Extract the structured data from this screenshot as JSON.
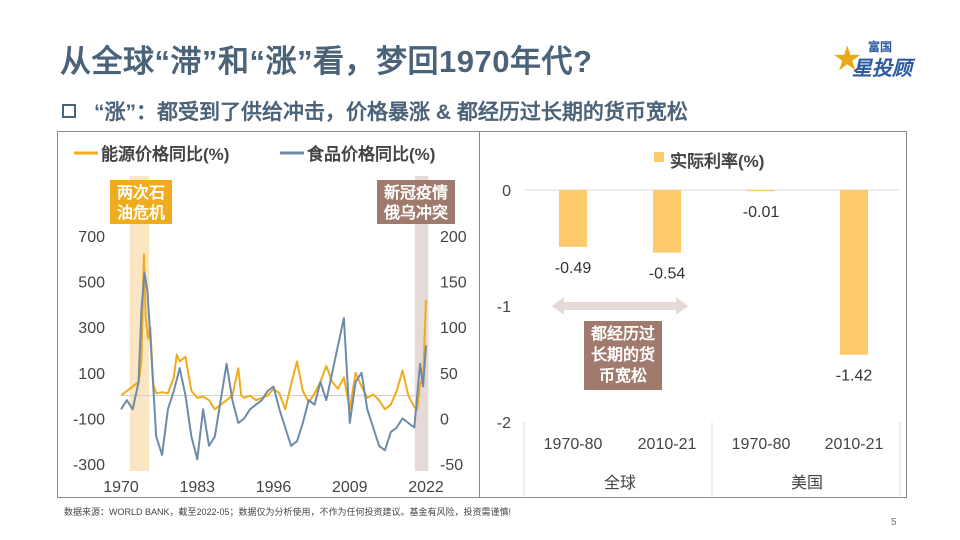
{
  "header": {
    "title": "从全球“滞”和“涨”看，梦回1970年代?",
    "subtitle": "“涨”：都受到了供给冲击，价格暴涨 & 都经历过长期的货币宽松",
    "logo_text_top": "富国",
    "logo_text_main": "星投顾"
  },
  "colors": {
    "energy": "#f0ac1c",
    "food": "#6e8bab",
    "bar": "#fdca6c",
    "title": "#4b6379",
    "shade_oil": "#fbe6c3",
    "shade_covid": "#e6dad6",
    "annot_oil": "#f0ac1c",
    "annot_covid": "#a07a6c",
    "annot_easing": "#a07a6c"
  },
  "chart_data": [
    {
      "type": "line",
      "legend": [
        "能源价格同比(%)",
        "食品价格同比(%)"
      ],
      "legend_position": "top",
      "xlabel": "",
      "x_ticks": [
        "1970",
        "1983",
        "1996",
        "2009",
        "2022"
      ],
      "xlim": [
        1970,
        2022
      ],
      "y_left_ticks": [
        "700",
        "500",
        "300",
        "100",
        "-100",
        "-300"
      ],
      "y_left_lim": [
        -300,
        700
      ],
      "y_right_ticks": [
        "200",
        "150",
        "100",
        "50",
        "0",
        "-50"
      ],
      "y_right_lim": [
        -50,
        200
      ],
      "annotations": [
        {
          "text": "两次石油危机",
          "lines": [
            "两次石",
            "油危机"
          ],
          "span": [
            1971.5,
            1974.8
          ]
        },
        {
          "text": "新冠疫情俄乌冲突",
          "lines": [
            "新冠疫情",
            "俄乌冲突"
          ],
          "span": [
            2020.1,
            2022.4
          ]
        }
      ],
      "series": [
        {
          "name": "能源价格同比(%)",
          "axis": "left",
          "x": [
            1970,
            1971,
            1972,
            1973,
            1973.5,
            1973.9,
            1974.2,
            1974.6,
            1975,
            1975.5,
            1976,
            1977,
            1978,
            1979,
            1979.5,
            1980,
            1981,
            1982,
            1983,
            1984,
            1985,
            1986,
            1987,
            1988,
            1989,
            1990,
            1990.5,
            1991,
            1992,
            1993,
            1994,
            1995,
            1996,
            1997,
            1998,
            1999,
            2000,
            2001,
            2002,
            2003,
            2004,
            2005,
            2006,
            2007,
            2008,
            2009,
            2010,
            2011,
            2012,
            2013,
            2014,
            2015,
            2016,
            2017,
            2018,
            2019,
            2020,
            2020.5,
            2021,
            2021.5,
            2022
          ],
          "y": [
            0,
            20,
            40,
            60,
            150,
            620,
            350,
            250,
            300,
            50,
            10,
            15,
            10,
            80,
            180,
            150,
            170,
            20,
            -10,
            -5,
            -20,
            -60,
            -40,
            -20,
            0,
            120,
            0,
            -10,
            0,
            -20,
            -10,
            0,
            30,
            10,
            -60,
            50,
            150,
            20,
            -30,
            10,
            60,
            130,
            60,
            30,
            80,
            -60,
            100,
            40,
            -10,
            5,
            -20,
            -60,
            -40,
            20,
            110,
            0,
            -50,
            -60,
            50,
            80,
            420
          ]
        },
        {
          "name": "食品价格同比(%)",
          "axis": "right",
          "x": [
            1970,
            1971,
            1972,
            1973,
            1973.5,
            1974,
            1974.5,
            1975,
            1976,
            1977,
            1978,
            1979,
            1980,
            1981,
            1982,
            1983,
            1984,
            1985,
            1986,
            1987,
            1988,
            1989,
            1990,
            1991,
            1992,
            1993,
            1994,
            1995,
            1996,
            1997,
            1998,
            1999,
            2000,
            2001,
            2002,
            2003,
            2004,
            2005,
            2006,
            2007,
            2008,
            2009,
            2010,
            2011,
            2012,
            2013,
            2014,
            2015,
            2016,
            2017,
            2018,
            2019,
            2020,
            2021,
            2021.5,
            2022
          ],
          "y": [
            10,
            20,
            10,
            40,
            120,
            160,
            140,
            90,
            -20,
            -40,
            10,
            30,
            55,
            25,
            -20,
            -45,
            10,
            -30,
            -20,
            20,
            60,
            20,
            -5,
            0,
            10,
            15,
            20,
            30,
            35,
            10,
            -10,
            -30,
            -25,
            -5,
            20,
            15,
            40,
            20,
            50,
            80,
            110,
            -5,
            40,
            50,
            10,
            -10,
            -30,
            -35,
            -15,
            -10,
            0,
            -5,
            -10,
            60,
            35,
            80
          ]
        }
      ]
    },
    {
      "type": "bar",
      "title": "实际利率(%)",
      "legend": [
        "实际利率(%)"
      ],
      "legend_position": "top",
      "categories": [
        "1970-80",
        "2010-21",
        "1970-80",
        "2010-21"
      ],
      "groups": [
        {
          "label": "全球",
          "count": 2
        },
        {
          "label": "美国",
          "count": 2
        }
      ],
      "values": [
        -0.49,
        -0.54,
        -0.01,
        -1.42
      ],
      "data_labels": [
        "-0.49",
        "-0.54",
        "-0.01",
        "-1.42"
      ],
      "y_ticks": [
        "0",
        "-1",
        "-2"
      ],
      "ylim": [
        -2,
        0
      ],
      "annotation": {
        "text": "都经历过长期的货币宽松",
        "lines": [
          "都经历过",
          "长期的货",
          "币宽松"
        ],
        "arrow_span": [
          "全球 1970-80",
          "全球 2010-21"
        ]
      }
    }
  ],
  "footer": {
    "source": "数据来源：WORLD BANK，截至2022-05；数据仅为分析使用，不作为任何投资建议。基金有风险，投资需谨慎!",
    "page": "5"
  }
}
